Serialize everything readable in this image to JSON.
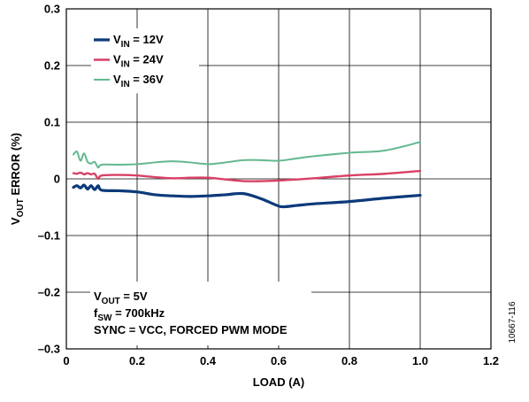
{
  "chart_data": {
    "type": "line",
    "title": "",
    "xlabel": "LOAD (A)",
    "ylabel": {
      "main": "V",
      "sub": "OUT",
      "rest": " ERROR (%)"
    },
    "xlim": [
      0,
      1.2
    ],
    "ylim": [
      -0.3,
      0.3
    ],
    "x_ticks": [
      0,
      0.2,
      0.4,
      0.6,
      0.8,
      1.0,
      1.2
    ],
    "x_tick_labels": [
      "0",
      "0.2",
      "0.4",
      "0.6",
      "0.8",
      "1.0",
      "1.2"
    ],
    "y_ticks": [
      0.3,
      0.2,
      0.1,
      0,
      -0.1,
      -0.2,
      -0.3
    ],
    "y_tick_labels": [
      "0.3",
      "0.2",
      "0.1",
      "0",
      "–0.1",
      "–0.2",
      "–0.3"
    ],
    "grid": true,
    "legend_position": "top-left",
    "series": [
      {
        "name": "V_IN = 12V",
        "label": {
          "main": "V",
          "sub": "IN",
          "rest": " = 12V"
        },
        "color": "#0d3a7a",
        "stroke_width": 3.2,
        "x": [
          0.02,
          0.03,
          0.04,
          0.05,
          0.06,
          0.07,
          0.08,
          0.09,
          0.1,
          0.15,
          0.2,
          0.25,
          0.3,
          0.35,
          0.4,
          0.45,
          0.5,
          0.55,
          0.6,
          0.62,
          0.65,
          0.7,
          0.8,
          0.9,
          1.0
        ],
        "y": [
          -0.015,
          -0.012,
          -0.016,
          -0.011,
          -0.018,
          -0.012,
          -0.019,
          -0.012,
          -0.02,
          -0.021,
          -0.023,
          -0.028,
          -0.03,
          -0.031,
          -0.03,
          -0.028,
          -0.026,
          -0.035,
          -0.048,
          -0.049,
          -0.047,
          -0.044,
          -0.04,
          -0.034,
          -0.029
        ]
      },
      {
        "name": "V_IN = 24V",
        "label": {
          "main": "V",
          "sub": "IN",
          "rest": " = 24V"
        },
        "color": "#d84166",
        "stroke_width": 2.4,
        "x": [
          0.02,
          0.03,
          0.04,
          0.05,
          0.06,
          0.07,
          0.08,
          0.09,
          0.1,
          0.15,
          0.2,
          0.25,
          0.3,
          0.35,
          0.4,
          0.45,
          0.5,
          0.55,
          0.6,
          0.65,
          0.7,
          0.8,
          0.9,
          1.0
        ],
        "y": [
          0.01,
          0.009,
          0.011,
          0.008,
          0.01,
          0.008,
          0.009,
          0.0,
          0.006,
          0.007,
          0.006,
          0.003,
          0.001,
          0.002,
          0.002,
          -0.001,
          -0.004,
          -0.004,
          -0.003,
          -0.001,
          0.001,
          0.006,
          0.009,
          0.014
        ]
      },
      {
        "name": "V_IN = 36V",
        "label": {
          "main": "V",
          "sub": "IN",
          "rest": " = 36V"
        },
        "color": "#62b88f",
        "stroke_width": 2.0,
        "x": [
          0.02,
          0.03,
          0.04,
          0.05,
          0.06,
          0.07,
          0.08,
          0.09,
          0.1,
          0.15,
          0.2,
          0.25,
          0.3,
          0.35,
          0.4,
          0.45,
          0.5,
          0.55,
          0.6,
          0.65,
          0.7,
          0.8,
          0.9,
          1.0
        ],
        "y": [
          0.043,
          0.048,
          0.032,
          0.045,
          0.03,
          0.027,
          0.03,
          0.02,
          0.025,
          0.025,
          0.026,
          0.029,
          0.031,
          0.029,
          0.026,
          0.029,
          0.033,
          0.033,
          0.032,
          0.036,
          0.04,
          0.046,
          0.05,
          0.065
        ]
      }
    ],
    "annotation": {
      "lines": [
        {
          "main": "V",
          "sub": "OUT",
          "rest": " = 5V"
        },
        {
          "main": "f",
          "sub": "SW",
          "rest": " = 700kHz"
        },
        {
          "main": "SYNC = VCC, FORCED PWM MODE",
          "sub": "",
          "rest": ""
        }
      ]
    },
    "figure_id": "10667-116"
  }
}
